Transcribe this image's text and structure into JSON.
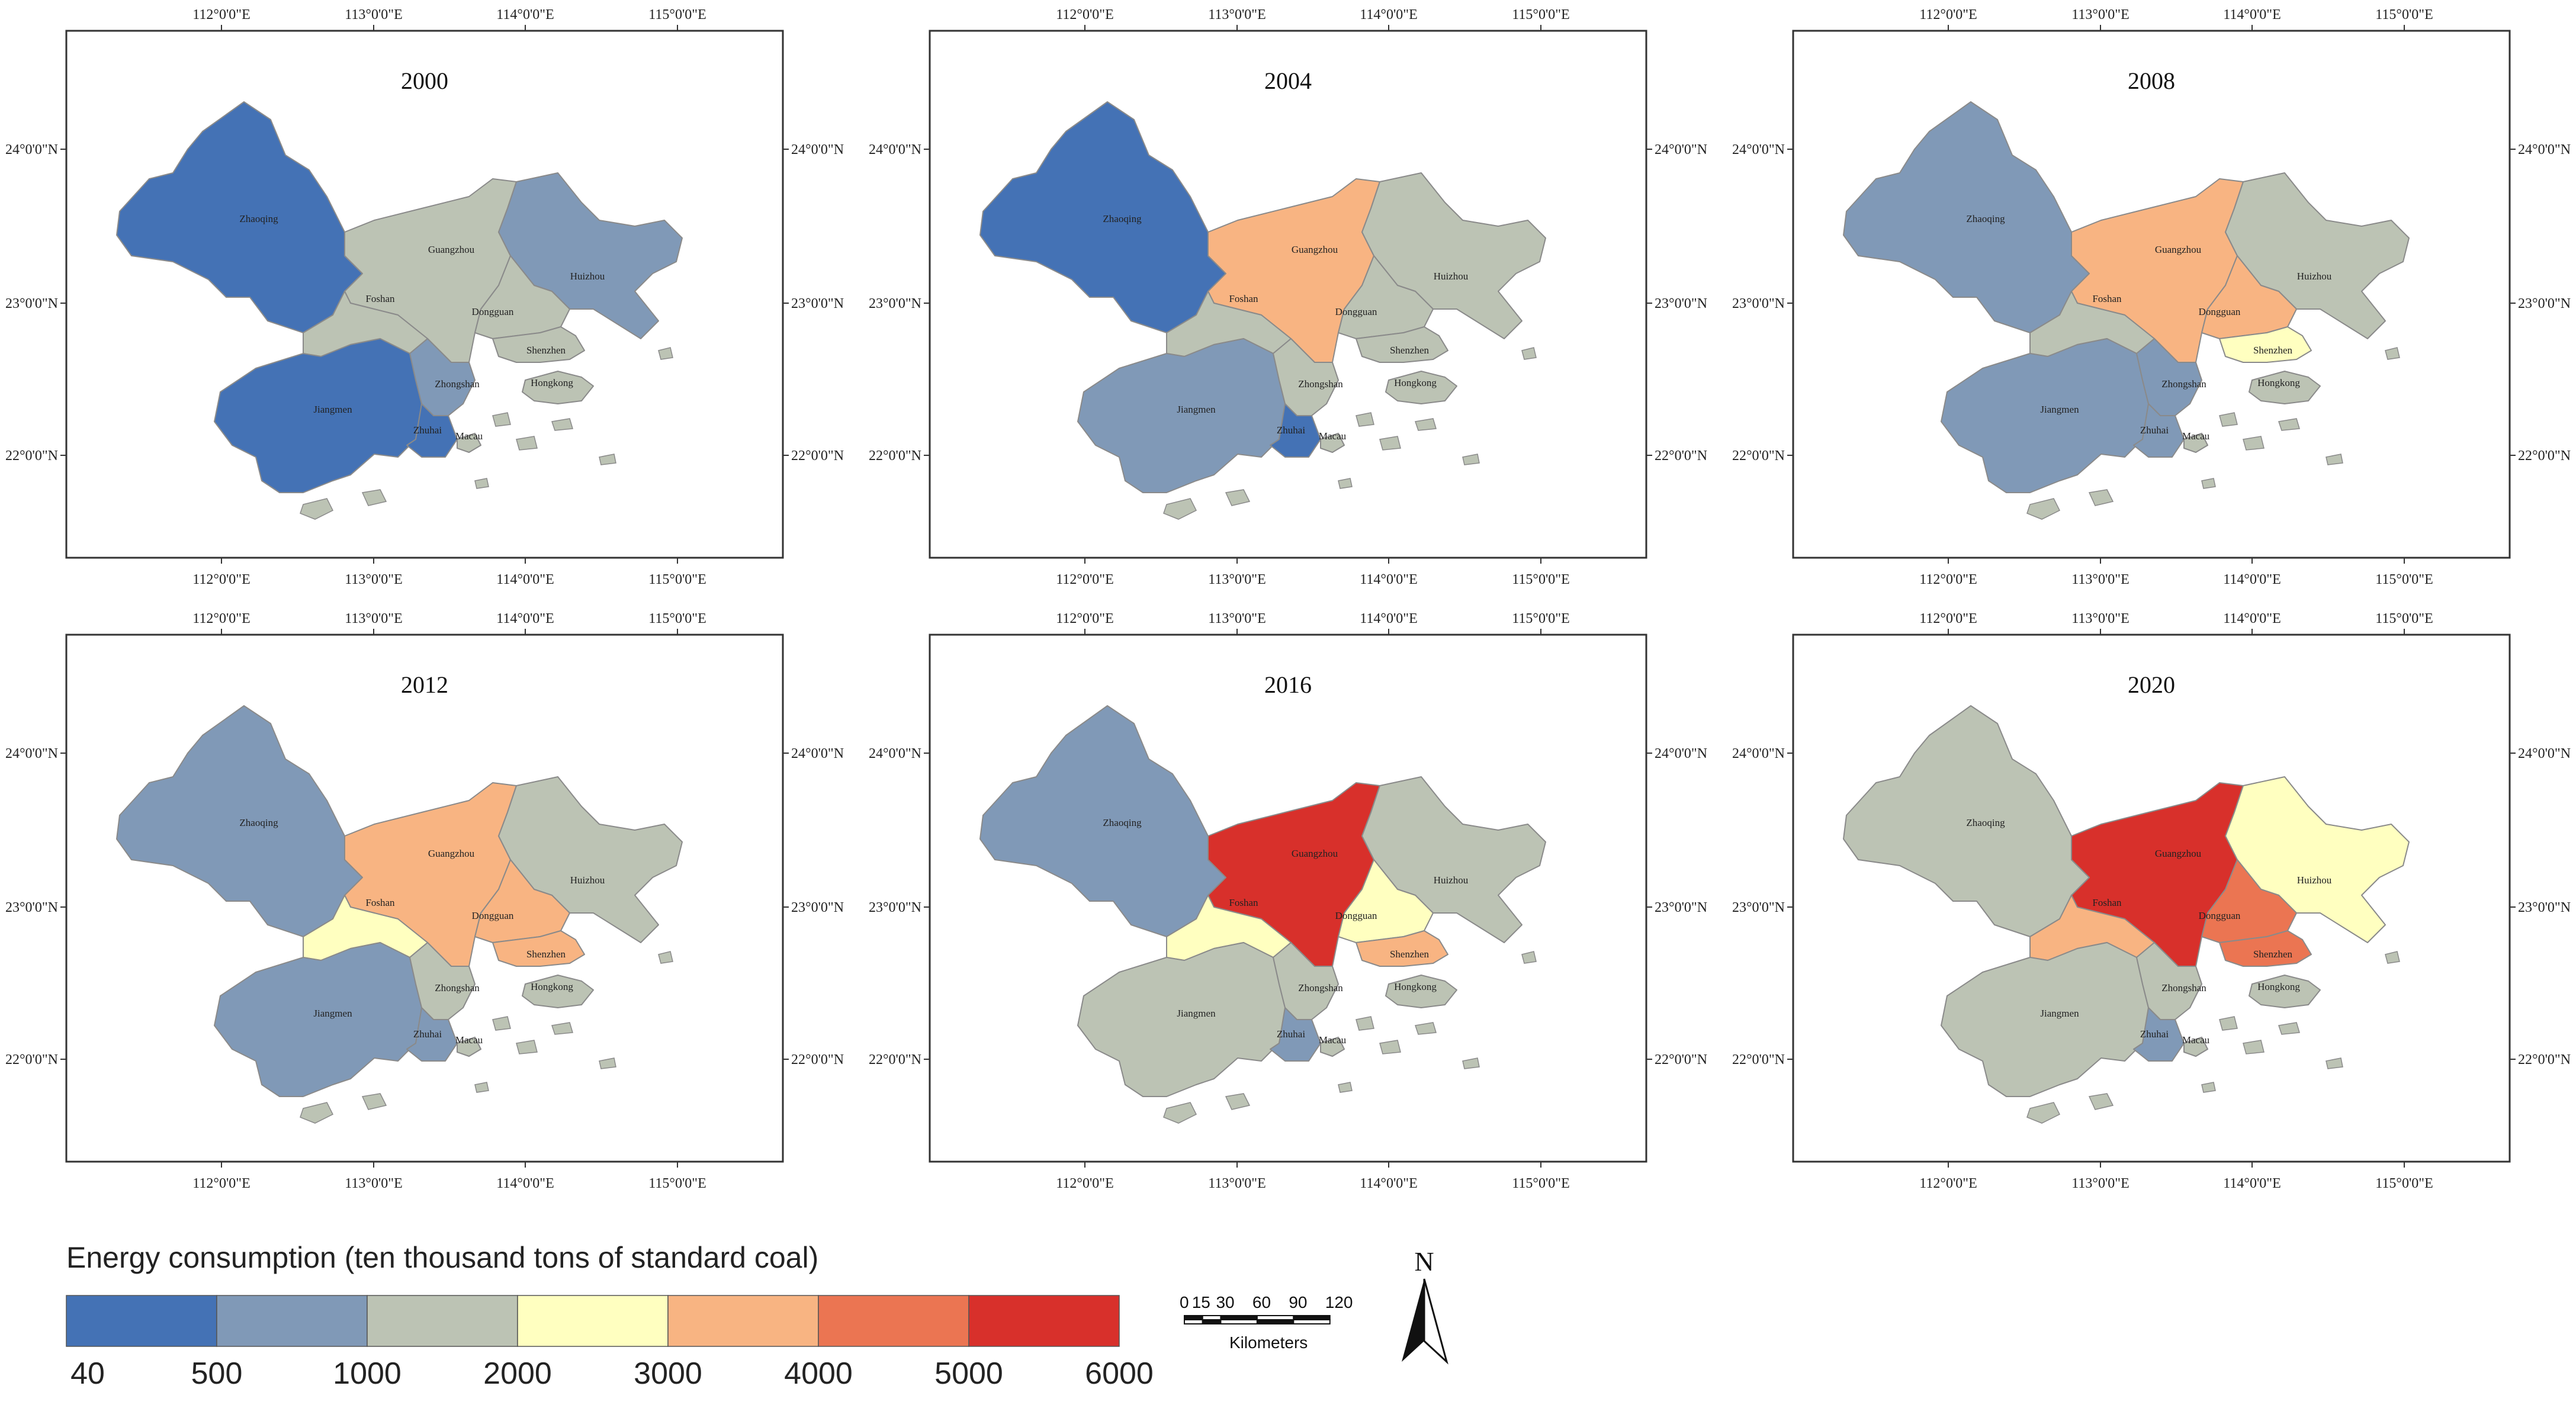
{
  "colors": {
    "c40_500": "#4472b5",
    "c500_1000": "#8099b7",
    "c1000_2000": "#bcc3b4",
    "c2000_3000": "#ffffc0",
    "c3000_4000": "#f8b482",
    "c4000_5000": "#eb7552",
    "c5000_6000": "#d8302b",
    "border": "#8a8a8a"
  },
  "axes": {
    "lon_labels": [
      "112°0'0\"E",
      "113°0'0\"E",
      "114°0'0\"E",
      "115°0'0\"E"
    ],
    "lat_labels": [
      "24°0'0\"N",
      "23°0'0\"N",
      "22°0'0\"N"
    ]
  },
  "city_labels": {
    "zhaoqing": "Zhaoqing",
    "guangzhou": "Guangzhou",
    "foshan": "Foshan",
    "dongguan": "Dongguan",
    "huizhou": "Huizhou",
    "shenzhen": "Shenzhen",
    "jiangmen": "Jiangmen",
    "zhongshan": "Zhongshan",
    "zhuhai": "Zhuhai",
    "macau": "Macau",
    "hongkong": "Hongkong"
  },
  "maps": [
    {
      "year": "2000",
      "fills": {
        "zhaoqing": "c40_500",
        "guangzhou": "c1000_2000",
        "foshan": "c1000_2000",
        "dongguan": "c1000_2000",
        "huizhou": "c500_1000",
        "shenzhen": "c1000_2000",
        "jiangmen": "c40_500",
        "zhongshan": "c500_1000",
        "zhuhai": "c40_500",
        "macau": "c1000_2000",
        "hongkong": "c1000_2000"
      }
    },
    {
      "year": "2004",
      "fills": {
        "zhaoqing": "c40_500",
        "guangzhou": "c3000_4000",
        "foshan": "c1000_2000",
        "dongguan": "c1000_2000",
        "huizhou": "c1000_2000",
        "shenzhen": "c1000_2000",
        "jiangmen": "c500_1000",
        "zhongshan": "c1000_2000",
        "zhuhai": "c40_500",
        "macau": "c1000_2000",
        "hongkong": "c1000_2000"
      }
    },
    {
      "year": "2008",
      "fills": {
        "zhaoqing": "c500_1000",
        "guangzhou": "c3000_4000",
        "foshan": "c1000_2000",
        "dongguan": "c3000_4000",
        "huizhou": "c1000_2000",
        "shenzhen": "c2000_3000",
        "jiangmen": "c500_1000",
        "zhongshan": "c500_1000",
        "zhuhai": "c500_1000",
        "macau": "c1000_2000",
        "hongkong": "c1000_2000"
      }
    },
    {
      "year": "2012",
      "fills": {
        "zhaoqing": "c500_1000",
        "guangzhou": "c3000_4000",
        "foshan": "c2000_3000",
        "dongguan": "c3000_4000",
        "huizhou": "c1000_2000",
        "shenzhen": "c3000_4000",
        "jiangmen": "c500_1000",
        "zhongshan": "c1000_2000",
        "zhuhai": "c500_1000",
        "macau": "c1000_2000",
        "hongkong": "c1000_2000"
      }
    },
    {
      "year": "2016",
      "fills": {
        "zhaoqing": "c500_1000",
        "guangzhou": "c5000_6000",
        "foshan": "c2000_3000",
        "dongguan": "c2000_3000",
        "huizhou": "c1000_2000",
        "shenzhen": "c3000_4000",
        "jiangmen": "c1000_2000",
        "zhongshan": "c1000_2000",
        "zhuhai": "c500_1000",
        "macau": "c1000_2000",
        "hongkong": "c1000_2000"
      }
    },
    {
      "year": "2020",
      "fills": {
        "zhaoqing": "c1000_2000",
        "guangzhou": "c5000_6000",
        "foshan": "c3000_4000",
        "dongguan": "c4000_5000",
        "huizhou": "c2000_3000",
        "shenzhen": "c4000_5000",
        "jiangmen": "c1000_2000",
        "zhongshan": "c1000_2000",
        "zhuhai": "c500_1000",
        "macau": "c1000_2000",
        "hongkong": "c1000_2000"
      }
    }
  ],
  "legend": {
    "title": "Energy consumption (ten thousand tons of standard coal)",
    "classes": [
      "c40_500",
      "c500_1000",
      "c1000_2000",
      "c2000_3000",
      "c3000_4000",
      "c4000_5000",
      "c5000_6000"
    ],
    "ticks": [
      "40",
      "500",
      "1000",
      "2000",
      "3000",
      "4000",
      "5000",
      "6000"
    ]
  },
  "scale_bar": {
    "labels": [
      "0",
      "15",
      "30",
      "60",
      "90",
      "120"
    ],
    "unit": "Kilometers"
  },
  "north_arrow": {
    "label": "N"
  }
}
